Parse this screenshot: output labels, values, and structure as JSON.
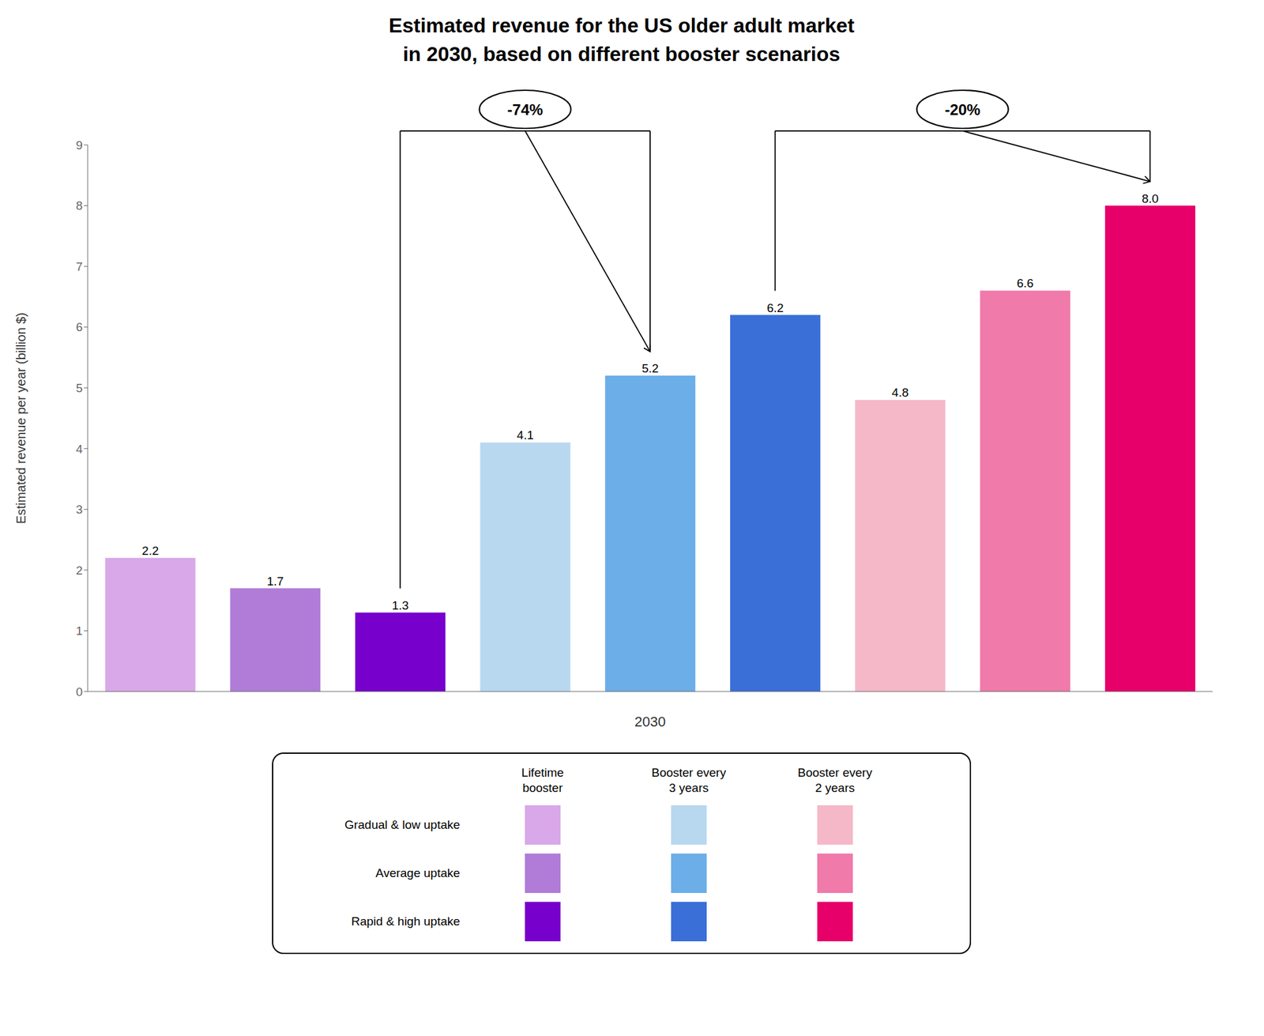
{
  "chart_data": {
    "type": "bar",
    "title": "Estimated revenue for the US older adult market\nin 2030, based on different booster scenarios",
    "xlabel": "2030",
    "ylabel": "Estimated revenue per year (billion $)",
    "categories": [
      null,
      null,
      null,
      null,
      null,
      null,
      null,
      null,
      null
    ],
    "values": [
      2.2,
      1.7,
      1.3,
      4.1,
      5.2,
      6.2,
      4.8,
      6.6,
      8.0
    ],
    "value_labels": [
      "2.2",
      "1.7",
      "1.3",
      "4.1",
      "5.2",
      "6.2",
      "4.8",
      "6.6",
      "8.0"
    ],
    "colors": [
      "#D8A8E8",
      "#B07CD8",
      "#7700CC",
      "#B8D8F0",
      "#6BAEE8",
      "#3A6FD8",
      "#F5B8C8",
      "#F07AAA",
      "#E8006A"
    ],
    "ylim": [
      0,
      9
    ],
    "yticks": [
      0,
      1,
      2,
      3,
      4,
      5,
      6,
      7,
      8,
      9
    ],
    "grid": false,
    "data_labels": true,
    "tick_labels": "y",
    "annotations": [
      "-74%",
      "-20%"
    ],
    "legend_table": {
      "columns": [
        "Lifetime\nbooster",
        "Booster every\n3 years",
        "Booster every\n2 years"
      ],
      "rows": [
        "Gradual & low uptake",
        "Average uptake",
        "Rapid & high uptake"
      ],
      "colors": [
        [
          "#D8A8E8",
          "#B8D8F0",
          "#F5B8C8"
        ],
        [
          "#B07CD8",
          "#6BAEE8",
          "#F07AAA"
        ],
        [
          "#7700CC",
          "#3A6FD8",
          "#E8006A"
        ]
      ]
    }
  }
}
